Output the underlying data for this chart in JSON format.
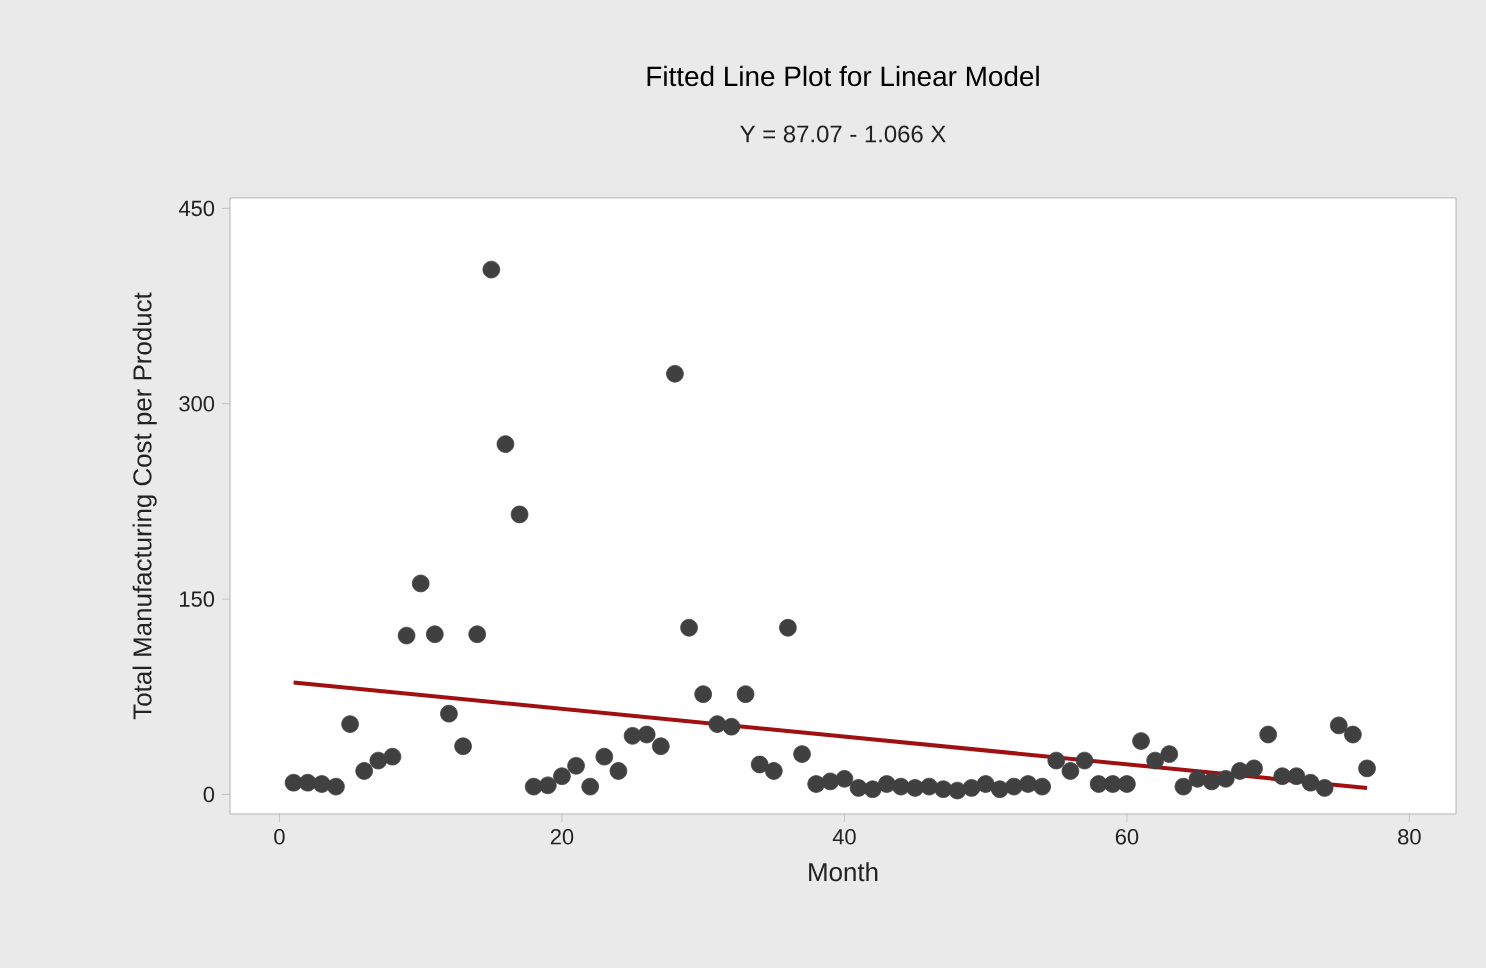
{
  "chart_data": {
    "type": "scatter",
    "title": "Fitted Line Plot for Linear Model",
    "subtitle": "Y = 87.07 - 1.066 X",
    "xlabel": "Month",
    "ylabel": "Total Manufacturing Cost per Product",
    "xlim": [
      -3.5,
      83.3
    ],
    "ylim": [
      -15,
      458
    ],
    "xticks": [
      0,
      20,
      40,
      60,
      80
    ],
    "yticks": [
      0,
      150,
      300,
      450
    ],
    "grid": false,
    "series": [
      {
        "color": "#404040",
        "marker": "circle",
        "x": [
          1,
          2,
          3,
          4,
          5,
          6,
          7,
          8,
          9,
          10,
          11,
          12,
          13,
          14,
          15,
          16,
          17,
          18,
          19,
          20,
          21,
          22,
          23,
          24,
          25,
          26,
          27,
          28,
          29,
          30,
          31,
          32,
          33,
          34,
          35,
          36,
          37,
          38,
          39,
          40,
          41,
          42,
          43,
          44,
          45,
          46,
          47,
          48,
          49,
          50,
          51,
          52,
          53,
          54,
          55,
          56,
          57,
          58,
          59,
          60,
          61,
          62,
          63,
          64,
          65,
          66,
          67,
          68,
          69,
          70,
          71,
          72,
          73,
          74,
          75,
          76,
          77
        ],
        "values": [
          9,
          9,
          8,
          6,
          54,
          18,
          26,
          29,
          122,
          162,
          123,
          62,
          37,
          123,
          403,
          269,
          215,
          6,
          7,
          14,
          22,
          6,
          29,
          18,
          45,
          46,
          37,
          323,
          128,
          77,
          54,
          52,
          77,
          23,
          18,
          128,
          31,
          8,
          10,
          12,
          5,
          4,
          8,
          6,
          5,
          6,
          4,
          3,
          5,
          8,
          4,
          6,
          8,
          6,
          26,
          18,
          26,
          8,
          8,
          8,
          41,
          26,
          31,
          6,
          12,
          10,
          12,
          18,
          20,
          46,
          14,
          14,
          9,
          5,
          53,
          46,
          20
        ]
      },
      {
        "type": "line",
        "color": "#a01010",
        "marker": "none",
        "x": [
          1,
          77
        ],
        "values": [
          86,
          5
        ]
      }
    ]
  }
}
